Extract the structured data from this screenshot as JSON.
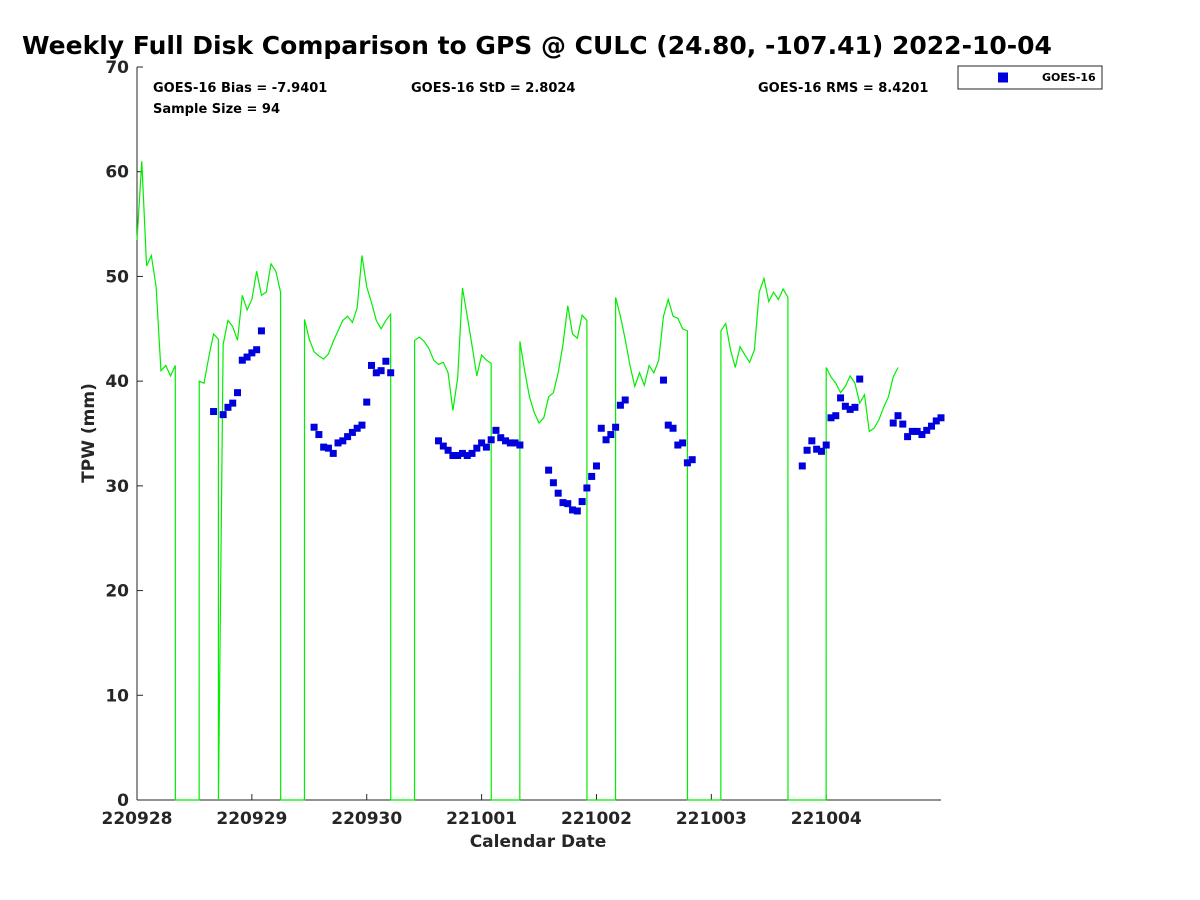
{
  "chart_data": {
    "type": "scatter",
    "title": "Weekly Full Disk Comparison to GPS @ CULC (24.80, -107.41) 2022-10-04",
    "xlabel": "Calendar Date",
    "ylabel": "TPW (mm)",
    "x_unit": "day",
    "xlim": [
      "220928",
      "221004 23:59"
    ],
    "ylim": [
      0,
      70
    ],
    "x_ticks": [
      "220928",
      "220929",
      "220930",
      "221001",
      "221002",
      "221003",
      "221004"
    ],
    "y_ticks": [
      0,
      10,
      20,
      30,
      40,
      50,
      60,
      70
    ],
    "grid": false,
    "legend": {
      "placement": "top-right outside",
      "entries": [
        "GOES-16"
      ]
    },
    "stats": {
      "bias": "GOES-16 Bias = -7.9401",
      "std": "GOES-16 StD = 2.8024",
      "rms": "GOES-16 RMS = 8.4201",
      "sample": "Sample Size = 94"
    },
    "series": [
      {
        "name": "GOES-16",
        "kind": "scatter",
        "color": "#0000dd",
        "points": [
          [
            "220928 16:00",
            37.1
          ],
          [
            "220928 18:00",
            36.8
          ],
          [
            "220928 19:00",
            37.5
          ],
          [
            "220928 20:00",
            37.9
          ],
          [
            "220928 21:00",
            38.9
          ],
          [
            "220928 22:00",
            42.0
          ],
          [
            "220928 23:00",
            42.3
          ],
          [
            "220929 00:00",
            42.7
          ],
          [
            "220929 01:00",
            43.0
          ],
          [
            "220929 02:00",
            44.8
          ],
          [
            "220929 13:00",
            35.6
          ],
          [
            "220929 14:00",
            34.9
          ],
          [
            "220929 15:00",
            33.7
          ],
          [
            "220929 16:00",
            33.6
          ],
          [
            "220929 17:00",
            33.1
          ],
          [
            "220929 18:00",
            34.1
          ],
          [
            "220929 19:00",
            34.3
          ],
          [
            "220929 20:00",
            34.7
          ],
          [
            "220929 21:00",
            35.1
          ],
          [
            "220929 22:00",
            35.5
          ],
          [
            "220929 23:00",
            35.8
          ],
          [
            "220930 00:00",
            38.0
          ],
          [
            "220930 01:00",
            41.5
          ],
          [
            "220930 02:00",
            40.8
          ],
          [
            "220930 03:00",
            41.0
          ],
          [
            "220930 04:00",
            41.9
          ],
          [
            "220930 05:00",
            40.8
          ],
          [
            "220930 15:00",
            34.3
          ],
          [
            "220930 16:00",
            33.8
          ],
          [
            "220930 17:00",
            33.4
          ],
          [
            "220930 18:00",
            32.9
          ],
          [
            "220930 19:00",
            32.9
          ],
          [
            "220930 20:00",
            33.1
          ],
          [
            "220930 21:00",
            32.9
          ],
          [
            "220930 22:00",
            33.1
          ],
          [
            "220930 23:00",
            33.6
          ],
          [
            "221001 00:00",
            34.1
          ],
          [
            "221001 01:00",
            33.7
          ],
          [
            "221001 02:00",
            34.4
          ],
          [
            "221001 03:00",
            35.3
          ],
          [
            "221001 04:00",
            34.6
          ],
          [
            "221001 05:00",
            34.3
          ],
          [
            "221001 06:00",
            34.1
          ],
          [
            "221001 07:00",
            34.1
          ],
          [
            "221001 08:00",
            33.9
          ],
          [
            "221001 14:00",
            31.5
          ],
          [
            "221001 15:00",
            30.3
          ],
          [
            "221001 16:00",
            29.3
          ],
          [
            "221001 17:00",
            28.4
          ],
          [
            "221001 18:00",
            28.3
          ],
          [
            "221001 19:00",
            27.7
          ],
          [
            "221001 20:00",
            27.6
          ],
          [
            "221001 21:00",
            28.5
          ],
          [
            "221001 22:00",
            29.8
          ],
          [
            "221001 23:00",
            30.9
          ],
          [
            "221002 00:00",
            31.9
          ],
          [
            "221002 01:00",
            35.5
          ],
          [
            "221002 02:00",
            34.4
          ],
          [
            "221002 03:00",
            34.9
          ],
          [
            "221002 04:00",
            35.6
          ],
          [
            "221002 05:00",
            37.7
          ],
          [
            "221002 06:00",
            38.2
          ],
          [
            "221002 14:00",
            40.1
          ],
          [
            "221002 15:00",
            35.8
          ],
          [
            "221002 16:00",
            35.5
          ],
          [
            "221002 17:00",
            33.9
          ],
          [
            "221002 18:00",
            34.1
          ],
          [
            "221002 19:00",
            32.2
          ],
          [
            "221002 20:00",
            32.5
          ],
          [
            "221003 19:00",
            31.9
          ],
          [
            "221003 20:00",
            33.4
          ],
          [
            "221003 21:00",
            34.3
          ],
          [
            "221003 22:00",
            33.5
          ],
          [
            "221003 23:00",
            33.3
          ],
          [
            "221004 00:00",
            33.9
          ],
          [
            "221004 01:00",
            36.5
          ],
          [
            "221004 02:00",
            36.7
          ],
          [
            "221004 03:00",
            38.4
          ],
          [
            "221004 04:00",
            37.6
          ],
          [
            "221004 05:00",
            37.3
          ],
          [
            "221004 06:00",
            37.5
          ],
          [
            "221004 07:00",
            40.2
          ],
          [
            "221004 14:00",
            36.0
          ],
          [
            "221004 15:00",
            36.7
          ],
          [
            "221004 16:00",
            35.9
          ],
          [
            "221004 17:00",
            34.7
          ],
          [
            "221004 18:00",
            35.2
          ],
          [
            "221004 19:00",
            35.2
          ],
          [
            "221004 20:00",
            34.9
          ],
          [
            "221004 21:00",
            35.3
          ],
          [
            "221004 22:00",
            35.7
          ],
          [
            "221004 23:00",
            36.2
          ],
          [
            "221004 23:59",
            36.5
          ]
        ]
      },
      {
        "name": "",
        "kind": "line",
        "color": "#00ee00",
        "points": [
          [
            "220928 00:00",
            53.5
          ],
          [
            "220928 01:00",
            61.0
          ],
          [
            "220928 02:00",
            51.0
          ],
          [
            "220928 03:00",
            52.0
          ],
          [
            "220928 04:00",
            49.0
          ],
          [
            "220928 05:00",
            41.0
          ],
          [
            "220928 06:00",
            41.5
          ],
          [
            "220928 07:00",
            40.5
          ],
          [
            "220928 08:00",
            41.5
          ],
          [
            "220928 08:01",
            0
          ],
          [
            "220928 12:59",
            0
          ],
          [
            "220928 13:00",
            40.0
          ],
          [
            "220928 14:00",
            39.8
          ],
          [
            "220928 15:00",
            42.3
          ],
          [
            "220928 16:00",
            44.5
          ],
          [
            "220928 17:00",
            44.0
          ],
          [
            "220928 17:01",
            0
          ],
          [
            "220928 18:00",
            43.5
          ],
          [
            "220928 19:00",
            45.8
          ],
          [
            "220928 20:00",
            45.2
          ],
          [
            "220928 21:00",
            43.9
          ],
          [
            "220928 22:00",
            48.2
          ],
          [
            "220928 23:00",
            46.8
          ],
          [
            "220929 00:00",
            47.8
          ],
          [
            "220929 01:00",
            50.5
          ],
          [
            "220929 02:00",
            48.2
          ],
          [
            "220929 03:00",
            48.5
          ],
          [
            "220929 04:00",
            51.2
          ],
          [
            "220929 05:00",
            50.5
          ],
          [
            "220929 06:00",
            48.5
          ],
          [
            "220929 06:01",
            0
          ],
          [
            "220929 10:59",
            0
          ],
          [
            "220929 11:00",
            45.9
          ],
          [
            "220929 12:00",
            44.0
          ],
          [
            "220929 13:00",
            42.8
          ],
          [
            "220929 14:00",
            42.4
          ],
          [
            "220929 15:00",
            42.1
          ],
          [
            "220929 16:00",
            42.6
          ],
          [
            "220929 17:00",
            43.8
          ],
          [
            "220929 18:00",
            44.8
          ],
          [
            "220929 19:00",
            45.8
          ],
          [
            "220929 20:00",
            46.2
          ],
          [
            "220929 21:00",
            45.6
          ],
          [
            "220929 22:00",
            47.0
          ],
          [
            "220929 23:00",
            52.0
          ],
          [
            "220930 00:00",
            49.0
          ],
          [
            "220930 01:00",
            47.5
          ],
          [
            "220930 02:00",
            45.8
          ],
          [
            "220930 03:00",
            45.0
          ],
          [
            "220930 04:00",
            45.8
          ],
          [
            "220930 05:00",
            46.4
          ],
          [
            "220930 05:01",
            0
          ],
          [
            "220930 09:59",
            0
          ],
          [
            "220930 10:00",
            43.9
          ],
          [
            "220930 11:00",
            44.2
          ],
          [
            "220930 12:00",
            43.8
          ],
          [
            "220930 13:00",
            43.1
          ],
          [
            "220930 14:00",
            42.0
          ],
          [
            "220930 15:00",
            41.6
          ],
          [
            "220930 16:00",
            41.8
          ],
          [
            "220930 17:00",
            40.8
          ],
          [
            "220930 18:00",
            37.2
          ],
          [
            "220930 19:00",
            40.3
          ],
          [
            "220930 20:00",
            48.9
          ],
          [
            "220930 21:00",
            46.2
          ],
          [
            "220930 22:00",
            43.4
          ],
          [
            "220930 23:00",
            40.5
          ],
          [
            "221001 00:00",
            42.5
          ],
          [
            "221001 01:00",
            42.0
          ],
          [
            "221001 02:00",
            41.7
          ],
          [
            "221001 02:01",
            0
          ],
          [
            "221001 07:59",
            0
          ],
          [
            "221001 08:00",
            43.8
          ],
          [
            "221001 09:00",
            41.0
          ],
          [
            "221001 10:00",
            38.5
          ],
          [
            "221001 11:00",
            37.0
          ],
          [
            "221001 12:00",
            36.0
          ],
          [
            "221001 13:00",
            36.5
          ],
          [
            "221001 14:00",
            38.5
          ],
          [
            "221001 15:00",
            38.9
          ],
          [
            "221001 16:00",
            40.8
          ],
          [
            "221001 17:00",
            43.5
          ],
          [
            "221001 18:00",
            47.2
          ],
          [
            "221001 19:00",
            44.5
          ],
          [
            "221001 20:00",
            44.1
          ],
          [
            "221001 21:00",
            46.3
          ],
          [
            "221001 22:00",
            45.8
          ],
          [
            "221001 22:01",
            0
          ],
          [
            "221002 03:59",
            0
          ],
          [
            "221002 04:00",
            48.0
          ],
          [
            "221002 05:00",
            46.2
          ],
          [
            "221002 06:00",
            44.0
          ],
          [
            "221002 07:00",
            41.5
          ],
          [
            "221002 08:00",
            39.5
          ],
          [
            "221002 09:00",
            40.8
          ],
          [
            "221002 10:00",
            39.6
          ],
          [
            "221002 11:00",
            41.5
          ],
          [
            "221002 12:00",
            40.8
          ],
          [
            "221002 13:00",
            42.0
          ],
          [
            "221002 14:00",
            46.2
          ],
          [
            "221002 15:00",
            47.8
          ],
          [
            "221002 16:00",
            46.2
          ],
          [
            "221002 17:00",
            46.0
          ],
          [
            "221002 18:00",
            45.0
          ],
          [
            "221002 19:00",
            44.8
          ],
          [
            "221002 19:01",
            0
          ],
          [
            "221003 01:59",
            0
          ],
          [
            "221003 02:00",
            44.8
          ],
          [
            "221003 03:00",
            45.5
          ],
          [
            "221003 04:00",
            43.0
          ],
          [
            "221003 05:00",
            41.3
          ],
          [
            "221003 06:00",
            43.3
          ],
          [
            "221003 07:00",
            42.5
          ],
          [
            "221003 08:00",
            41.8
          ],
          [
            "221003 09:00",
            43.0
          ],
          [
            "221003 10:00",
            48.5
          ],
          [
            "221003 11:00",
            49.8
          ],
          [
            "221003 12:00",
            47.6
          ],
          [
            "221003 13:00",
            48.5
          ],
          [
            "221003 14:00",
            47.8
          ],
          [
            "221003 15:00",
            48.8
          ],
          [
            "221003 16:00",
            48.0
          ],
          [
            "221003 16:01",
            0
          ],
          [
            "221003 23:59",
            0
          ],
          [
            "221004 00:00",
            41.3
          ],
          [
            "221004 01:00",
            40.4
          ],
          [
            "221004 02:00",
            39.8
          ],
          [
            "221004 03:00",
            38.9
          ],
          [
            "221004 04:00",
            39.5
          ],
          [
            "221004 05:00",
            40.5
          ],
          [
            "221004 06:00",
            39.8
          ],
          [
            "221004 07:00",
            37.9
          ],
          [
            "221004 08:00",
            38.7
          ],
          [
            "221004 09:00",
            35.2
          ],
          [
            "221004 10:00",
            35.5
          ],
          [
            "221004 11:00",
            36.3
          ],
          [
            "221004 12:00",
            37.5
          ],
          [
            "221004 13:00",
            38.5
          ],
          [
            "221004 14:00",
            40.4
          ],
          [
            "221004 15:00",
            41.3
          ]
        ]
      }
    ]
  }
}
